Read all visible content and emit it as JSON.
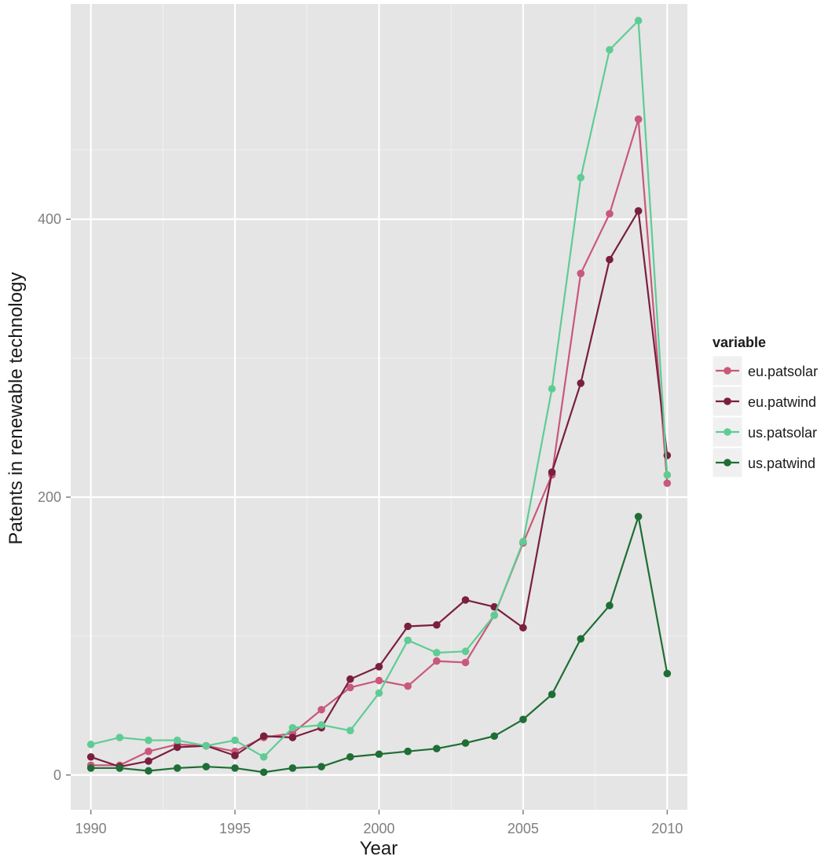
{
  "chart_data": {
    "type": "line",
    "title": "",
    "xlabel": "Year",
    "ylabel": "Patents in renewable technology",
    "xlim": [
      1989.3,
      2010.7
    ],
    "ylim": [
      -25,
      555
    ],
    "x_ticks": [
      1990,
      1995,
      2000,
      2005,
      2010
    ],
    "y_ticks": [
      0,
      200,
      400
    ],
    "grid": true,
    "legend": {
      "title": "variable",
      "position": "right"
    },
    "x": [
      1990,
      1991,
      1992,
      1993,
      1994,
      1995,
      1996,
      1997,
      1998,
      1999,
      2000,
      2001,
      2002,
      2003,
      2004,
      2005,
      2006,
      2007,
      2008,
      2009,
      2010
    ],
    "series": [
      {
        "name": "eu.patsolar",
        "color": "#c9587a",
        "values": [
          7,
          7,
          17,
          22,
          21,
          17,
          27,
          30,
          47,
          63,
          68,
          64,
          82,
          81,
          115,
          167,
          216,
          361,
          404,
          472,
          210
        ]
      },
      {
        "name": "eu.patwind",
        "color": "#7a1f3d",
        "values": [
          13,
          6,
          10,
          20,
          21,
          14,
          28,
          27,
          34,
          69,
          78,
          107,
          108,
          126,
          121,
          106,
          218,
          282,
          371,
          406,
          230
        ]
      },
      {
        "name": "us.patsolar",
        "color": "#5fcc94",
        "values": [
          22,
          27,
          25,
          25,
          21,
          25,
          13,
          34,
          36,
          32,
          59,
          97,
          88,
          89,
          115,
          168,
          278,
          430,
          522,
          543,
          216
        ]
      },
      {
        "name": "us.patwind",
        "color": "#1f6e35",
        "values": [
          5,
          5,
          3,
          5,
          6,
          5,
          2,
          5,
          6,
          13,
          15,
          17,
          19,
          23,
          28,
          40,
          58,
          98,
          122,
          186,
          73
        ]
      }
    ]
  }
}
